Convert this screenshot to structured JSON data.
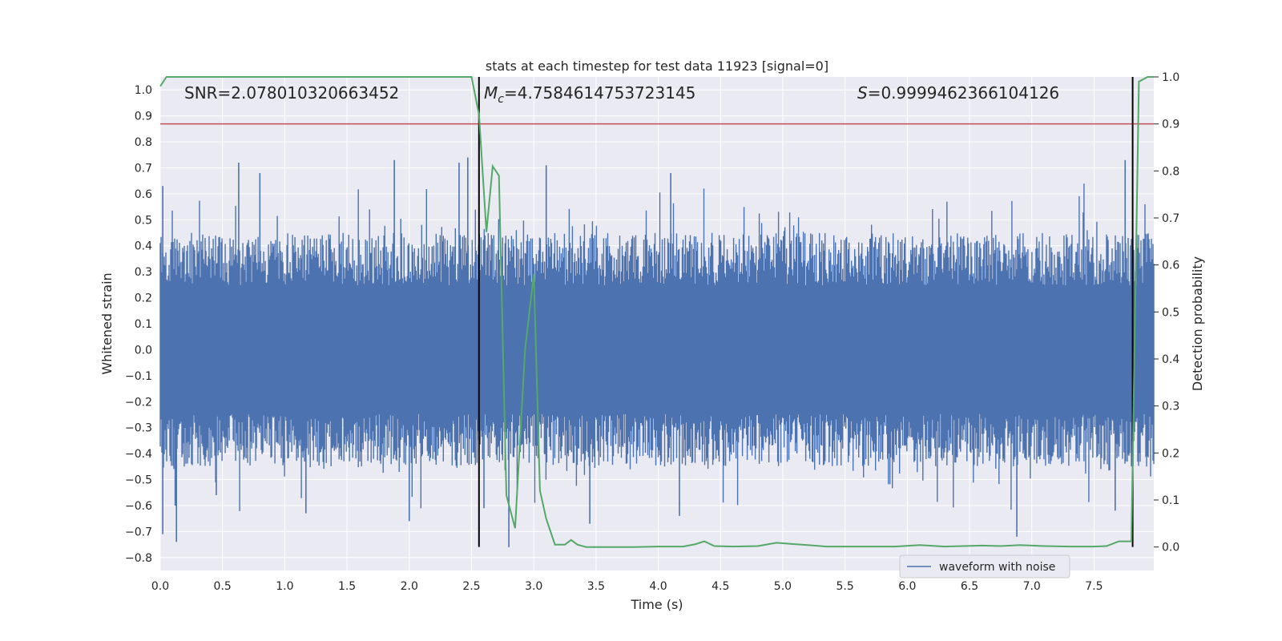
{
  "chart_data": {
    "type": "line",
    "title": "stats at each timestep for test data 11923 [signal=0]",
    "xlabel": "Time (s)",
    "ylabel": "Whitened strain",
    "y2label": "Detection probability",
    "xlim": [
      0.0,
      7.98
    ],
    "ylim": [
      -0.85,
      1.05
    ],
    "y2lim": [
      -0.05,
      1.0
    ],
    "xticks": [
      0.0,
      0.5,
      1.0,
      1.5,
      2.0,
      2.5,
      3.0,
      3.5,
      4.0,
      4.5,
      5.0,
      5.5,
      6.0,
      6.5,
      7.0,
      7.5
    ],
    "yticks": [
      -0.8,
      -0.7,
      -0.6,
      -0.5,
      -0.4,
      -0.3,
      -0.2,
      -0.1,
      0.0,
      0.1,
      0.2,
      0.3,
      0.4,
      0.5,
      0.6,
      0.7,
      0.8,
      0.9,
      1.0
    ],
    "y2ticks": [
      0.0,
      0.1,
      0.2,
      0.3,
      0.4,
      0.5,
      0.6,
      0.7,
      0.8,
      0.9,
      1.0
    ],
    "grid": true,
    "legend": {
      "placement": "lower-right",
      "entries": [
        "waveform with noise"
      ]
    },
    "annotations": {
      "snr": "SNR=2.078010320663452",
      "mc_sym": "M",
      "mc_sub": "c",
      "mc_val": "=4.7584614753723145",
      "s_sym": "S",
      "s_val": "=0.9999462366104126"
    },
    "vertical_markers_x": [
      2.56,
      7.81
    ],
    "threshold_line_y2": 0.9,
    "waveform_with_noise": {
      "name": "waveform with noise",
      "color": "#4c72b0",
      "typical_amplitude": 0.45,
      "peaks": [
        {
          "t": 0.02,
          "v": 0.63
        },
        {
          "t": 0.02,
          "v": -0.71
        },
        {
          "t": 0.13,
          "v": -0.74
        },
        {
          "t": 0.63,
          "v": 0.72
        },
        {
          "t": 0.8,
          "v": 0.68
        },
        {
          "t": 1.88,
          "v": 0.73
        },
        {
          "t": 2.4,
          "v": 0.72
        },
        {
          "t": 2.47,
          "v": 0.74
        },
        {
          "t": 3.1,
          "v": 0.71
        },
        {
          "t": 4.1,
          "v": 0.68
        },
        {
          "t": 7.75,
          "v": 0.73
        },
        {
          "t": 0.12,
          "v": -0.6
        },
        {
          "t": 0.45,
          "v": -0.56
        },
        {
          "t": 1.17,
          "v": -0.63
        },
        {
          "t": 2.0,
          "v": -0.66
        },
        {
          "t": 2.6,
          "v": -0.61
        },
        {
          "t": 2.8,
          "v": -0.76
        },
        {
          "t": 3.45,
          "v": -0.67
        },
        {
          "t": 4.17,
          "v": -0.64
        },
        {
          "t": 6.88,
          "v": -0.72
        },
        {
          "t": 7.67,
          "v": -0.62
        }
      ]
    },
    "detection_probability": {
      "color": "#55a868",
      "t": [
        0.0,
        0.05,
        0.2,
        0.5,
        1.0,
        1.5,
        2.0,
        2.3,
        2.45,
        2.5,
        2.56,
        2.62,
        2.67,
        2.72,
        2.78,
        2.85,
        2.93,
        3.0,
        3.05,
        3.1,
        3.17,
        3.25,
        3.3,
        3.35,
        3.42,
        3.5,
        3.8,
        4.0,
        4.2,
        4.3,
        4.37,
        4.45,
        4.6,
        4.8,
        4.95,
        5.05,
        5.2,
        5.35,
        5.6,
        5.9,
        6.1,
        6.3,
        6.6,
        6.75,
        6.9,
        7.1,
        7.3,
        7.5,
        7.6,
        7.7,
        7.76,
        7.8,
        7.86,
        7.93,
        7.98
      ],
      "v": [
        0.98,
        1.0,
        1.0,
        1.0,
        1.0,
        1.0,
        1.0,
        1.0,
        1.0,
        1.0,
        0.92,
        0.67,
        0.81,
        0.79,
        0.11,
        0.04,
        0.42,
        0.58,
        0.12,
        0.06,
        0.005,
        0.005,
        0.015,
        0.005,
        0.0,
        0.0,
        0.0,
        0.001,
        0.001,
        0.006,
        0.012,
        0.002,
        0.001,
        0.002,
        0.009,
        0.007,
        0.004,
        0.001,
        0.001,
        0.001,
        0.004,
        0.001,
        0.003,
        0.002,
        0.004,
        0.002,
        0.001,
        0.001,
        0.002,
        0.012,
        0.012,
        0.012,
        0.99,
        1.0,
        1.0
      ]
    },
    "colors": {
      "plot_bg": "#eaeaf2",
      "grid": "#ffffff",
      "threshold": "#c44e52",
      "marker": "#000000",
      "text": "#262626"
    }
  }
}
